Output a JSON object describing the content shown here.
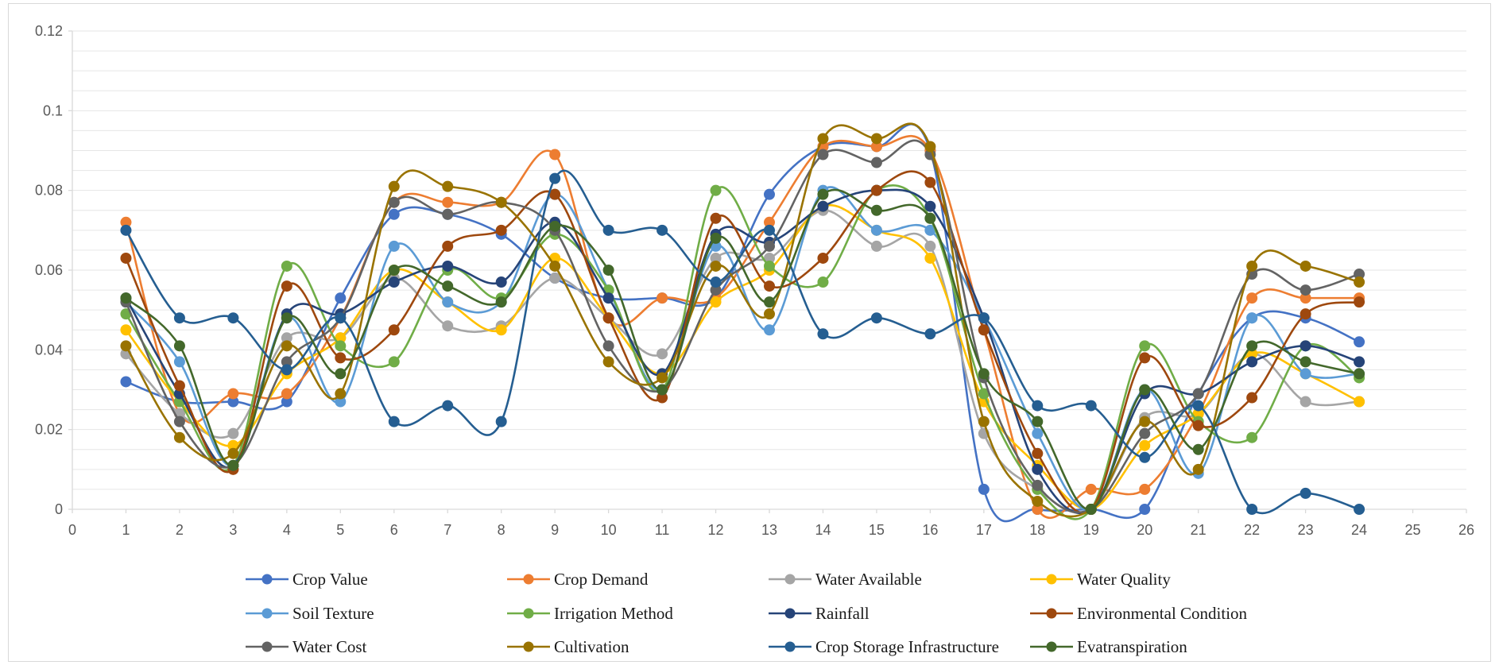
{
  "chart_data": {
    "type": "line",
    "title": "",
    "xlabel": "",
    "ylabel": "",
    "smooth": true,
    "markers": "circle",
    "grid": "horizontal major and minor",
    "legend_position": "bottom",
    "xlim": [
      0,
      26
    ],
    "ylim": [
      0,
      0.12
    ],
    "x_ticks": [
      0,
      1,
      2,
      3,
      4,
      5,
      6,
      7,
      8,
      9,
      10,
      11,
      12,
      13,
      14,
      15,
      16,
      17,
      18,
      19,
      20,
      21,
      22,
      23,
      24,
      25,
      26
    ],
    "y_ticks": [
      0,
      0.02,
      0.04,
      0.06,
      0.08,
      0.1,
      0.12
    ],
    "y_tick_labels": [
      "0",
      "0.02",
      "0.04",
      "0.06",
      "0.08",
      "0.1",
      "0.12"
    ],
    "x": [
      1,
      2,
      3,
      4,
      5,
      6,
      7,
      8,
      9,
      10,
      11,
      12,
      13,
      14,
      15,
      16,
      17,
      18,
      19,
      20,
      21,
      22,
      23,
      24
    ],
    "series": [
      {
        "name": "Crop Value",
        "color": "#4472C4",
        "values": [
          0.032,
          0.027,
          0.027,
          0.027,
          0.053,
          0.074,
          0.074,
          0.069,
          0.058,
          0.053,
          0.053,
          0.053,
          0.079,
          0.091,
          0.091,
          0.09,
          0.005,
          0,
          0,
          0,
          0.029,
          0.048,
          0.048,
          0.042
        ]
      },
      {
        "name": "Crop Demand",
        "color": "#ED7D31",
        "values": [
          0.072,
          0.024,
          0.029,
          0.029,
          0.048,
          0.077,
          0.077,
          0.077,
          0.089,
          0.048,
          0.053,
          0.053,
          0.072,
          0.091,
          0.091,
          0.09,
          0.045,
          0,
          0.005,
          0.005,
          0.024,
          0.053,
          0.053,
          0.053
        ]
      },
      {
        "name": "Water Available",
        "color": "#A5A5A5",
        "values": [
          0.039,
          0.024,
          0.019,
          0.043,
          0.043,
          0.058,
          0.046,
          0.046,
          0.058,
          0.048,
          0.039,
          0.063,
          0.063,
          0.075,
          0.066,
          0.066,
          0.019,
          0.005,
          0,
          0.023,
          0.024,
          0.039,
          0.027,
          0.027
        ]
      },
      {
        "name": "Water Quality",
        "color": "#FFC000",
        "values": [
          0.045,
          0.027,
          0.016,
          0.034,
          0.043,
          0.06,
          0.052,
          0.045,
          0.063,
          0.048,
          0.034,
          0.052,
          0.06,
          0.076,
          0.07,
          0.063,
          0.027,
          0.011,
          0,
          0.016,
          0.024,
          0.039,
          0.034,
          0.027
        ]
      },
      {
        "name": "Soil Texture",
        "color": "#5B9BD5",
        "values": [
          0.052,
          0.037,
          0.011,
          0.048,
          0.027,
          0.066,
          0.052,
          0.052,
          0.079,
          0.055,
          0.03,
          0.066,
          0.045,
          0.08,
          0.07,
          0.07,
          0.048,
          0.019,
          0,
          0.03,
          0.009,
          0.048,
          0.034,
          0.034
        ]
      },
      {
        "name": "Irrigation Method",
        "color": "#70AD47",
        "values": [
          0.049,
          0.027,
          0.011,
          0.061,
          0.041,
          0.037,
          0.06,
          0.053,
          0.069,
          0.055,
          0.03,
          0.08,
          0.061,
          0.057,
          0.08,
          0.073,
          0.029,
          0.005,
          0,
          0.041,
          0.022,
          0.018,
          0.041,
          0.033
        ]
      },
      {
        "name": "Rainfall",
        "color": "#264478",
        "values": [
          0.053,
          0.029,
          0.011,
          0.049,
          0.049,
          0.057,
          0.061,
          0.057,
          0.072,
          0.053,
          0.034,
          0.069,
          0.067,
          0.076,
          0.08,
          0.076,
          0.048,
          0.01,
          0,
          0.029,
          0.029,
          0.037,
          0.041,
          0.037
        ]
      },
      {
        "name": "Environmental Condition",
        "color": "#9E480E",
        "values": [
          0.063,
          0.031,
          0.01,
          0.056,
          0.038,
          0.045,
          0.066,
          0.07,
          0.079,
          0.048,
          0.028,
          0.073,
          0.056,
          0.063,
          0.08,
          0.082,
          0.045,
          0.014,
          0,
          0.038,
          0.021,
          0.028,
          0.049,
          0.052
        ]
      },
      {
        "name": "Water Cost",
        "color": "#636363",
        "values": [
          0.052,
          0.022,
          0.011,
          0.037,
          0.048,
          0.077,
          0.074,
          0.077,
          0.07,
          0.041,
          0.03,
          0.055,
          0.066,
          0.089,
          0.087,
          0.089,
          0.033,
          0.006,
          0,
          0.019,
          0.029,
          0.059,
          0.055,
          0.059
        ]
      },
      {
        "name": "Cultivation",
        "color": "#997300",
        "values": [
          0.041,
          0.018,
          0.014,
          0.041,
          0.029,
          0.081,
          0.081,
          0.077,
          0.061,
          0.037,
          0.033,
          0.061,
          0.049,
          0.093,
          0.093,
          0.091,
          0.022,
          0.002,
          0,
          0.022,
          0.01,
          0.061,
          0.061,
          0.057
        ]
      },
      {
        "name": "Crop Storage Infrastructure",
        "color": "#255E91",
        "values": [
          0.07,
          0.048,
          0.048,
          0.035,
          0.048,
          0.022,
          0.026,
          0.022,
          0.083,
          0.07,
          0.07,
          0.057,
          0.07,
          0.044,
          0.048,
          0.044,
          0.048,
          0.026,
          0.026,
          0.013,
          0.026,
          0,
          0.004,
          0
        ]
      },
      {
        "name": "Evatranspiration",
        "color": "#43682B",
        "values": [
          0.053,
          0.041,
          0.011,
          0.048,
          0.034,
          0.06,
          0.056,
          0.052,
          0.071,
          0.06,
          0.03,
          0.068,
          0.052,
          0.079,
          0.075,
          0.073,
          0.034,
          0.022,
          0,
          0.03,
          0.015,
          0.041,
          0.037,
          0.034
        ]
      }
    ]
  }
}
